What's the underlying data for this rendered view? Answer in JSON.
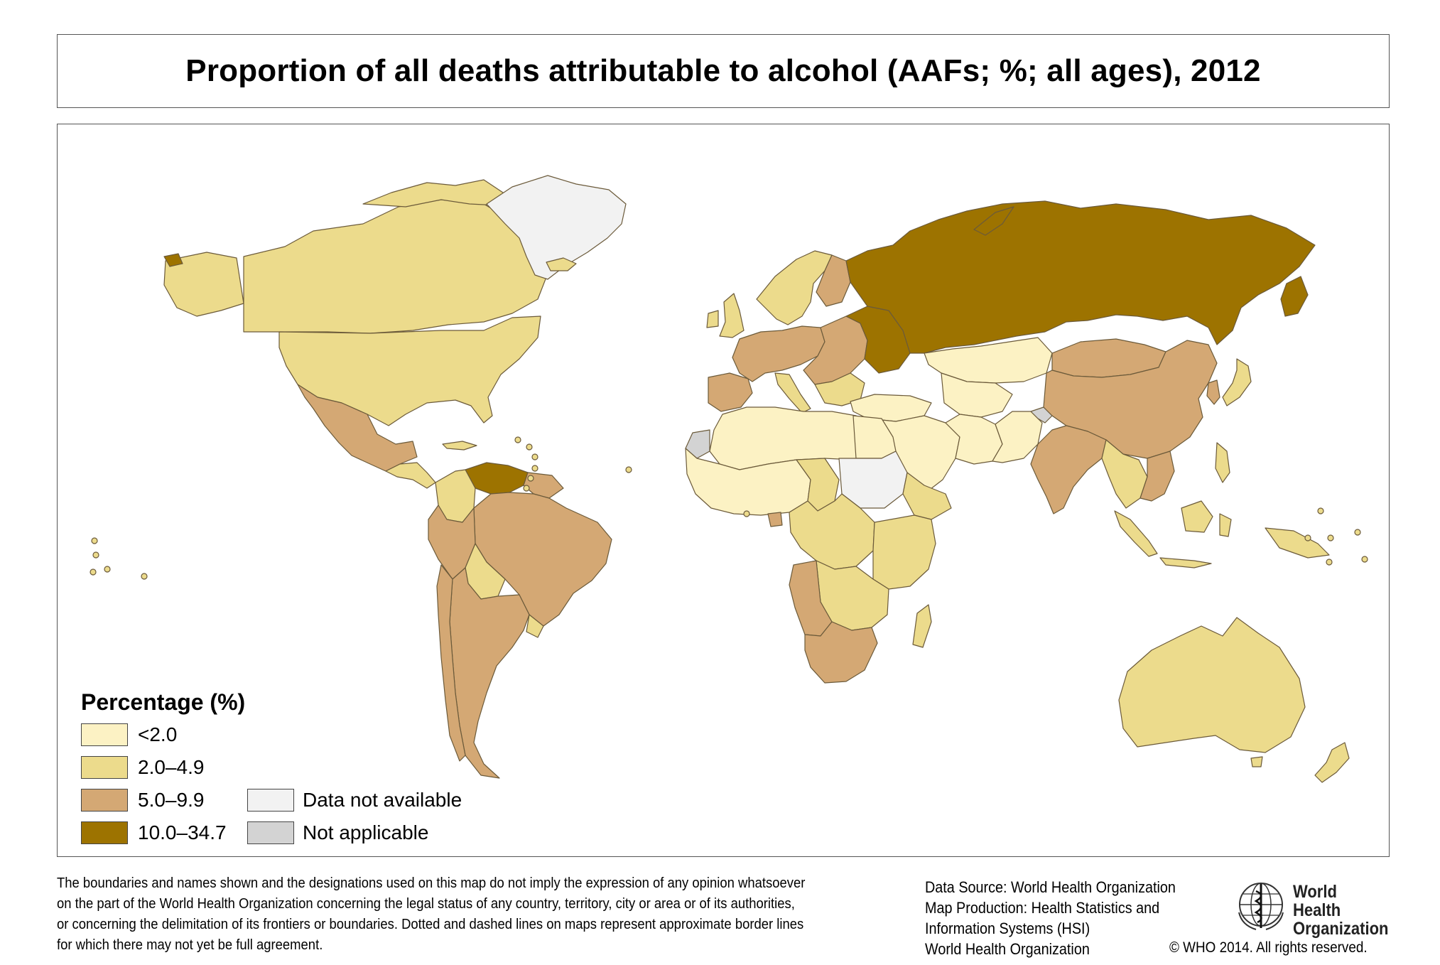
{
  "title": "Proportion of all deaths attributable to alcohol (AAFs; %; all ages), 2012",
  "colors": {
    "c1": "#FCF2C4",
    "c2": "#ECDB8C",
    "c3": "#D4A874",
    "c4": "#9D7300",
    "na": "#F2F2F2",
    "notapp": "#D3D3D3",
    "border": "#6B5A3A"
  },
  "legend": {
    "title": "Percentage (%)",
    "items": [
      {
        "label": "<2.0",
        "color": "#FCF2C4"
      },
      {
        "label": "2.0–4.9",
        "color": "#ECDB8C"
      },
      {
        "label": "5.0–9.9",
        "color": "#D4A874"
      },
      {
        "label": "10.0–34.7",
        "color": "#9D7300"
      }
    ],
    "extra": [
      {
        "label": "Data not available",
        "color": "#F2F2F2"
      },
      {
        "label": "Not applicable",
        "color": "#D3D3D3"
      }
    ]
  },
  "disclaimer": [
    "The boundaries and names shown and the designations used on this map do not imply the expression of any opinion whatsoever",
    "on the part of the World Health Organization concerning the legal status of any country, territory, city or area or of its authorities,",
    "or concerning the delimitation of its frontiers or boundaries. Dotted and dashed lines on maps represent approximate border lines",
    "for which there may not yet be full agreement."
  ],
  "sources": [
    "Data Source: World Health Organization",
    "Map Production: Health Statistics and",
    "Information Systems (HSI)",
    "World Health Organization"
  ],
  "logo": {
    "line1": "World Health",
    "line2": "Organization"
  },
  "copyright": "© WHO 2014. All rights reserved."
}
